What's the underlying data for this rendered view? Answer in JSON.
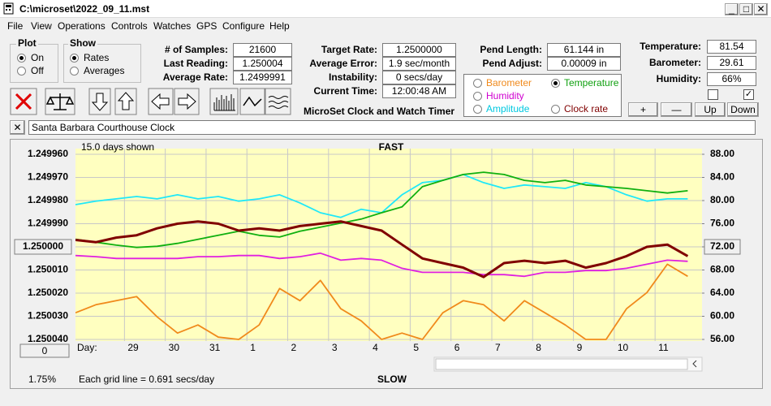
{
  "window": {
    "title": "C:\\microset\\2022_09_11.mst"
  },
  "menu": [
    "File",
    "View",
    "Operations",
    "Controls",
    "Watches",
    "GPS",
    "Configure",
    "Help"
  ],
  "plot": {
    "label": "Plot",
    "options": [
      "On",
      "Off"
    ]
  },
  "show": {
    "label": "Show",
    "options": [
      "Rates",
      "Averages"
    ]
  },
  "stats": [
    {
      "label": "# of Samples:",
      "value": "21600"
    },
    {
      "label": "Last Reading:",
      "value": "1.250004"
    },
    {
      "label": "Average Rate:",
      "value": "1.2499991"
    }
  ],
  "targets": [
    {
      "label": "Target Rate:",
      "value": "1.2500000"
    },
    {
      "label": "Average Error:",
      "value": "1.9 sec/month"
    },
    {
      "label": "Instability:",
      "value": "0 secs/day"
    },
    {
      "label": "Current Time:",
      "value": "12:00:48 AM"
    }
  ],
  "app_name": "MicroSet Clock and Watch Timer",
  "pendulum": [
    {
      "label": "Pend Length:",
      "value": "61.144 in"
    },
    {
      "label": "Pend Adjust:",
      "value": "0.00009 in"
    }
  ],
  "trace_options": [
    "Barometer",
    "Temperature",
    "Humidity",
    "Amplitude",
    "Clock rate"
  ],
  "sensors": [
    {
      "label": "Temperature:",
      "value": "81.54"
    },
    {
      "label": "Barometer:",
      "value": "29.61"
    },
    {
      "label": "Humidity:",
      "value": "66%"
    }
  ],
  "buttons": [
    "+",
    "—",
    "Up",
    "Down"
  ],
  "clock_name": "Santa Barbara Courthouse Clock",
  "chart_data": {
    "type": "line",
    "days_shown": "15.0 days shown",
    "top_label": "FAST",
    "bottom_label": "SLOW",
    "grid_note": "Each grid line = 0.691 secs/day",
    "x_label": "Day:",
    "zoom_button": "0",
    "percent": "1.75%",
    "grid": true,
    "x": [
      0,
      0.5,
      1,
      1.5,
      2,
      2.5,
      3,
      3.5,
      4,
      4.5,
      5,
      5.5,
      6,
      6.5,
      7,
      7.5,
      8,
      8.5,
      9,
      9.5,
      10,
      10.5,
      11,
      11.5,
      12,
      12.5,
      13,
      13.5,
      14,
      14.5,
      15
    ],
    "xlim": [
      0,
      15.35
    ],
    "xticks": [
      {
        "value": 1.2,
        "label": "29"
      },
      {
        "value": 2.2,
        "label": "30"
      },
      {
        "value": 3.2,
        "label": "31"
      },
      {
        "value": 4.2,
        "label": "1"
      },
      {
        "value": 5.2,
        "label": "2"
      },
      {
        "value": 6.2,
        "label": "3"
      },
      {
        "value": 7.2,
        "label": "4"
      },
      {
        "value": 8.2,
        "label": "5"
      },
      {
        "value": 9.2,
        "label": "6"
      },
      {
        "value": 10.2,
        "label": "7"
      },
      {
        "value": 11.2,
        "label": "8"
      },
      {
        "value": 12.2,
        "label": "9"
      },
      {
        "value": 13.2,
        "label": "10"
      },
      {
        "value": 14.2,
        "label": "11"
      }
    ],
    "ylim": [
      1.25004,
      1.24996
    ],
    "yticks": [
      {
        "value": 1.24996,
        "label": "1.249960"
      },
      {
        "value": 1.24997,
        "label": "1.249970"
      },
      {
        "value": 1.24998,
        "label": "1.249980"
      },
      {
        "value": 1.24999,
        "label": "1.249990"
      },
      {
        "value": 1.25,
        "label": "1.250000"
      },
      {
        "value": 1.25001,
        "label": "1.250010"
      },
      {
        "value": 1.25002,
        "label": "1.250020"
      },
      {
        "value": 1.25003,
        "label": "1.250030"
      },
      {
        "value": 1.25004,
        "label": "1.250040"
      }
    ],
    "y2lim": [
      56,
      88
    ],
    "y2ticks": [
      {
        "value": 88,
        "label": "88.00"
      },
      {
        "value": 84,
        "label": "84.00"
      },
      {
        "value": 80,
        "label": "80.00"
      },
      {
        "value": 76,
        "label": "76.00"
      },
      {
        "value": 72,
        "label": "72.00"
      },
      {
        "value": 68,
        "label": "68.00"
      },
      {
        "value": 64,
        "label": "64.00"
      },
      {
        "value": 60,
        "label": "60.00"
      },
      {
        "value": 56,
        "label": "56.00"
      }
    ],
    "series": [
      {
        "name": "Barometer",
        "color": "#f08a1c",
        "axis": "y2",
        "values": [
          60.6,
          62.0,
          62.7,
          63.4,
          59.9,
          57.1,
          58.5,
          56.4,
          56.0,
          58.5,
          64.8,
          62.7,
          66.2,
          61.3,
          59.2,
          56.0,
          57.1,
          56.0,
          60.6,
          62.7,
          62.0,
          59.2,
          62.7,
          60.6,
          58.5,
          56.0,
          56.0,
          61.3,
          64.1,
          69.0,
          66.9
        ]
      },
      {
        "name": "Humidity",
        "color": "#e020e0",
        "axis": "y2",
        "values": [
          70.5,
          70.3,
          70.0,
          70.0,
          70.0,
          70.0,
          70.3,
          70.3,
          70.5,
          70.5,
          70.0,
          70.3,
          70.9,
          69.7,
          70.0,
          69.7,
          68.3,
          67.6,
          67.6,
          67.6,
          67.2,
          67.2,
          66.9,
          67.6,
          67.6,
          67.9,
          67.9,
          68.3,
          69.0,
          69.7,
          69.5
        ]
      },
      {
        "name": "Amplitude",
        "color": "#20e8f8",
        "axis": "y2",
        "values": [
          79.3,
          79.9,
          80.3,
          80.7,
          80.3,
          81.0,
          80.3,
          80.7,
          79.9,
          80.3,
          81.0,
          79.6,
          77.9,
          77.1,
          78.5,
          77.9,
          81.0,
          83.1,
          83.5,
          84.5,
          83.1,
          82.1,
          82.7,
          82.4,
          82.1,
          83.1,
          82.4,
          81.0,
          79.9,
          80.3,
          80.3
        ]
      },
      {
        "name": "Temperature",
        "color": "#10b010",
        "axis": "y2",
        "values": [
          73.3,
          72.8,
          72.3,
          71.9,
          72.1,
          72.6,
          73.3,
          74.0,
          74.7,
          74.0,
          73.7,
          74.7,
          75.4,
          76.1,
          76.8,
          77.9,
          78.9,
          82.4,
          83.5,
          84.5,
          84.9,
          84.5,
          83.5,
          83.1,
          83.5,
          82.7,
          82.4,
          82.1,
          81.7,
          81.3,
          81.7
        ]
      },
      {
        "name": "Clock rate",
        "color": "#800000",
        "values": [
          1.249997,
          1.249998,
          1.249996,
          1.249995,
          1.249992,
          1.24999,
          1.249989,
          1.24999,
          1.249993,
          1.249992,
          1.249993,
          1.249991,
          1.24999,
          1.249989,
          1.249991,
          1.249993,
          1.249999,
          1.250005,
          1.250007,
          1.250009,
          1.250013,
          1.250007,
          1.250006,
          1.250007,
          1.250006,
          1.250009,
          1.250007,
          1.250004,
          1.25,
          1.249999,
          1.250004
        ]
      }
    ]
  }
}
